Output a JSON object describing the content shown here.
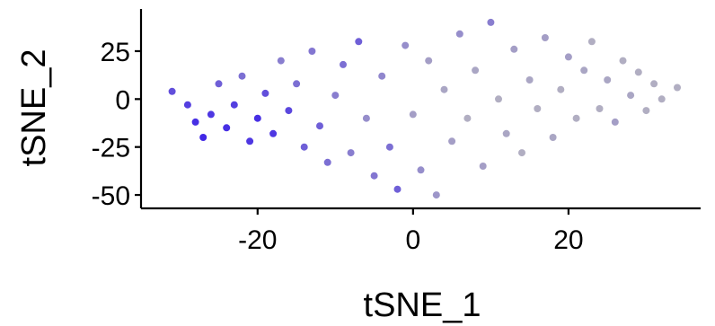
{
  "chart_data": {
    "type": "scatter",
    "title": "",
    "xlabel": "tSNE_1",
    "ylabel": "tSNE_2",
    "xlim": [
      -35,
      37
    ],
    "ylim": [
      -57,
      47
    ],
    "xticks": [
      -20,
      0,
      20
    ],
    "xtick_labels": [
      "-20",
      "0",
      "20"
    ],
    "yticks": [
      25,
      0,
      -25,
      -50
    ],
    "ytick_labels": [
      "25",
      "0",
      "-25",
      "-50"
    ],
    "grid": false,
    "legend": "none",
    "point_color_low": "#bebebe",
    "point_color_high": "#3a1fe8",
    "series": [
      {
        "points": [
          {
            "x": -31,
            "y": 4,
            "v": 0.7
          },
          {
            "x": -29,
            "y": -3,
            "v": 0.8
          },
          {
            "x": -28,
            "y": -12,
            "v": 0.9
          },
          {
            "x": -27,
            "y": -20,
            "v": 0.95
          },
          {
            "x": -26,
            "y": -8,
            "v": 0.85
          },
          {
            "x": -25,
            "y": 8,
            "v": 0.6
          },
          {
            "x": -24,
            "y": -15,
            "v": 0.9
          },
          {
            "x": -23,
            "y": -3,
            "v": 0.8
          },
          {
            "x": -22,
            "y": 12,
            "v": 0.5
          },
          {
            "x": -21,
            "y": -22,
            "v": 0.85
          },
          {
            "x": -20,
            "y": -10,
            "v": 0.9
          },
          {
            "x": -19,
            "y": 3,
            "v": 0.7
          },
          {
            "x": -18,
            "y": -18,
            "v": 0.85
          },
          {
            "x": -17,
            "y": 20,
            "v": 0.4
          },
          {
            "x": -16,
            "y": -6,
            "v": 0.75
          },
          {
            "x": -15,
            "y": 8,
            "v": 0.5
          },
          {
            "x": -14,
            "y": -25,
            "v": 0.6
          },
          {
            "x": -13,
            "y": 25,
            "v": 0.45
          },
          {
            "x": -12,
            "y": -14,
            "v": 0.6
          },
          {
            "x": -11,
            "y": -33,
            "v": 0.5
          },
          {
            "x": -10,
            "y": 2,
            "v": 0.4
          },
          {
            "x": -9,
            "y": 18,
            "v": 0.5
          },
          {
            "x": -8,
            "y": -28,
            "v": 0.4
          },
          {
            "x": -7,
            "y": 30,
            "v": 0.6
          },
          {
            "x": -6,
            "y": -10,
            "v": 0.3
          },
          {
            "x": -5,
            "y": -40,
            "v": 0.45
          },
          {
            "x": -4,
            "y": 12,
            "v": 0.35
          },
          {
            "x": -3,
            "y": -25,
            "v": 0.5
          },
          {
            "x": -2,
            "y": -47,
            "v": 0.6
          },
          {
            "x": -1,
            "y": 28,
            "v": 0.3
          },
          {
            "x": 0,
            "y": -8,
            "v": 0.2
          },
          {
            "x": 1,
            "y": -37,
            "v": 0.3
          },
          {
            "x": 2,
            "y": 20,
            "v": 0.2
          },
          {
            "x": 3,
            "y": -50,
            "v": 0.25
          },
          {
            "x": 4,
            "y": 5,
            "v": 0.15
          },
          {
            "x": 5,
            "y": -22,
            "v": 0.2
          },
          {
            "x": 6,
            "y": 34,
            "v": 0.3
          },
          {
            "x": 7,
            "y": -10,
            "v": 0.1
          },
          {
            "x": 8,
            "y": 15,
            "v": 0.15
          },
          {
            "x": 9,
            "y": -35,
            "v": 0.2
          },
          {
            "x": 10,
            "y": 40,
            "v": 0.4
          },
          {
            "x": 11,
            "y": 0,
            "v": 0.1
          },
          {
            "x": 12,
            "y": -18,
            "v": 0.15
          },
          {
            "x": 13,
            "y": 26,
            "v": 0.2
          },
          {
            "x": 14,
            "y": -28,
            "v": 0.1
          },
          {
            "x": 15,
            "y": 10,
            "v": 0.15
          },
          {
            "x": 16,
            "y": -5,
            "v": 0.1
          },
          {
            "x": 17,
            "y": 32,
            "v": 0.2
          },
          {
            "x": 18,
            "y": -20,
            "v": 0.15
          },
          {
            "x": 19,
            "y": 5,
            "v": 0.1
          },
          {
            "x": 20,
            "y": 22,
            "v": 0.2
          },
          {
            "x": 21,
            "y": -10,
            "v": 0.1
          },
          {
            "x": 22,
            "y": 15,
            "v": 0.15
          },
          {
            "x": 23,
            "y": 30,
            "v": 0.1
          },
          {
            "x": 24,
            "y": -5,
            "v": 0.1
          },
          {
            "x": 25,
            "y": 10,
            "v": 0.15
          },
          {
            "x": 26,
            "y": -12,
            "v": 0.2
          },
          {
            "x": 27,
            "y": 20,
            "v": 0.1
          },
          {
            "x": 28,
            "y": 2,
            "v": 0.15
          },
          {
            "x": 29,
            "y": 14,
            "v": 0.1
          },
          {
            "x": 30,
            "y": -6,
            "v": 0.1
          },
          {
            "x": 31,
            "y": 8,
            "v": 0.1
          },
          {
            "x": 32,
            "y": 0,
            "v": 0.1
          },
          {
            "x": 34,
            "y": 6,
            "v": 0.1
          }
        ]
      }
    ]
  }
}
